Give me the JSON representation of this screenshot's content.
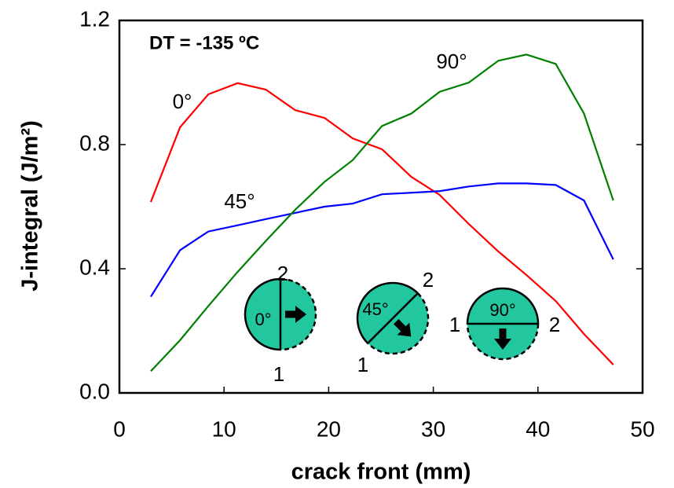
{
  "chart_data": {
    "type": "line",
    "x_label": "crack front (mm)",
    "y_label": "J-integral  (J/m²)",
    "x": [
      3,
      5.8,
      8.5,
      11.3,
      14,
      16.8,
      19.6,
      22.3,
      25.1,
      27.9,
      30.6,
      33.4,
      36.2,
      38.9,
      41.7,
      44.4,
      47.2
    ],
    "series": [
      {
        "name": "0°",
        "color": "#ff0000",
        "values": [
          0.615,
          0.856,
          0.962,
          0.998,
          0.977,
          0.911,
          0.886,
          0.82,
          0.785,
          0.696,
          0.638,
          0.544,
          0.456,
          0.38,
          0.296,
          0.19,
          0.091
        ]
      },
      {
        "name": "45°",
        "color": "#0000ff",
        "values": [
          0.31,
          0.46,
          0.52,
          0.54,
          0.56,
          0.58,
          0.6,
          0.61,
          0.64,
          0.645,
          0.65,
          0.665,
          0.675,
          0.675,
          0.67,
          0.62,
          0.43
        ]
      },
      {
        "name": "90°",
        "color": "#008000",
        "values": [
          0.07,
          0.17,
          0.28,
          0.39,
          0.49,
          0.59,
          0.68,
          0.75,
          0.86,
          0.9,
          0.97,
          1.0,
          1.07,
          1.09,
          1.06,
          0.9,
          0.62
        ]
      }
    ],
    "annotation": "DT = -135 ºC",
    "xlim": [
      0,
      50
    ],
    "xticks": [
      0,
      10,
      20,
      30,
      40,
      50
    ],
    "ylim": [
      0,
      1.2
    ],
    "yticks": [
      {
        "value": 0,
        "label": "0.0"
      },
      0.4,
      0.8,
      1.2
    ],
    "grid": false,
    "insets": [
      {
        "angle": "0°",
        "ends": [
          "1",
          "2"
        ]
      },
      {
        "angle": "45°",
        "ends": [
          "1",
          "2"
        ]
      },
      {
        "angle": "90°",
        "ends": [
          "1",
          "2"
        ]
      }
    ]
  }
}
